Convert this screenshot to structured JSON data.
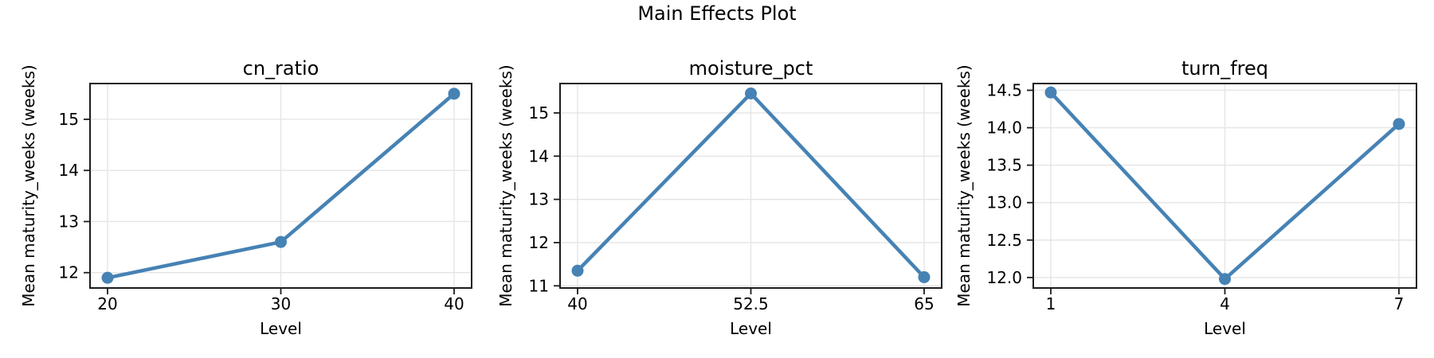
{
  "figure": {
    "title": "Main Effects Plot"
  },
  "colors": {
    "line": "#4682B4",
    "grid": "#e5e5e5",
    "spine": "#1c1c1c",
    "text": "#000000",
    "background": "#ffffff"
  },
  "chart_data": [
    {
      "type": "line",
      "title": "cn_ratio",
      "xlabel": "Level",
      "ylabel": "Mean maturity_weeks (weeks)",
      "categories": [
        "20",
        "30",
        "40"
      ],
      "values": [
        11.9,
        12.6,
        15.5
      ],
      "yticks": [
        12,
        13,
        14,
        15
      ],
      "ytick_labels": [
        "12",
        "13",
        "14",
        "15"
      ],
      "ylim": [
        11.7,
        15.7
      ],
      "grid": true,
      "legend": "none",
      "marker": "circle"
    },
    {
      "type": "line",
      "title": "moisture_pct",
      "xlabel": "Level",
      "ylabel": "Mean maturity_weeks (weeks)",
      "categories": [
        "40",
        "52.5",
        "65"
      ],
      "values": [
        11.35,
        15.45,
        11.2
      ],
      "yticks": [
        11,
        12,
        13,
        14,
        15
      ],
      "ytick_labels": [
        "11",
        "12",
        "13",
        "14",
        "15"
      ],
      "ylim": [
        10.95,
        15.68
      ],
      "grid": true,
      "legend": "none",
      "marker": "circle"
    },
    {
      "type": "line",
      "title": "turn_freq",
      "xlabel": "Level",
      "ylabel": "Mean maturity_weeks (weeks)",
      "categories": [
        "1",
        "4",
        "7"
      ],
      "values": [
        14.47,
        11.98,
        14.05
      ],
      "yticks": [
        12.0,
        12.5,
        13.0,
        13.5,
        14.0,
        14.5
      ],
      "ytick_labels": [
        "12.0",
        "12.5",
        "13.0",
        "13.5",
        "14.0",
        "14.5"
      ],
      "ylim": [
        11.86,
        14.59
      ],
      "grid": true,
      "legend": "none",
      "marker": "circle"
    }
  ]
}
